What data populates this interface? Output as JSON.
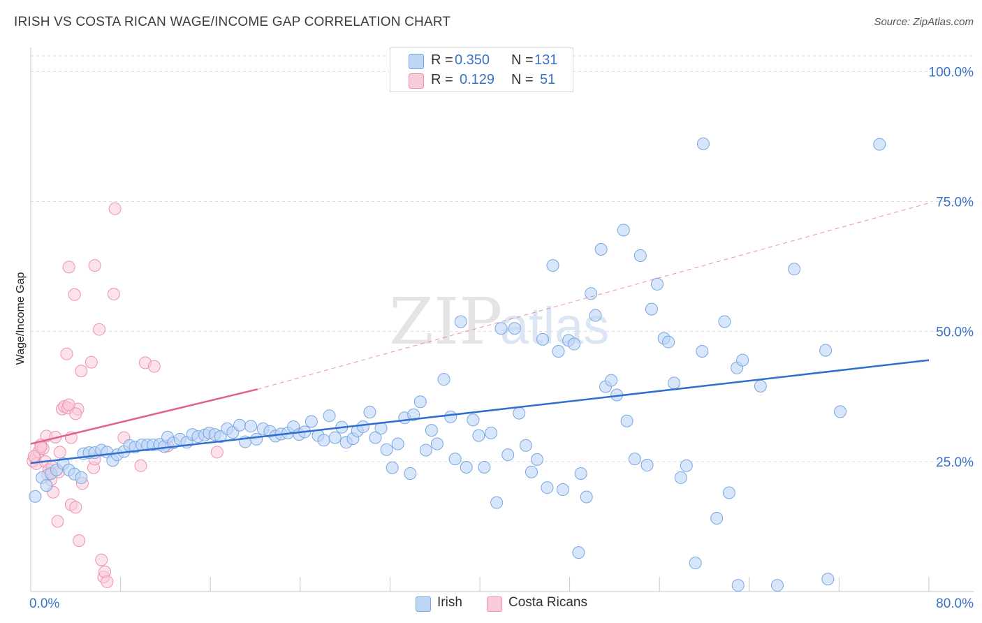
{
  "header": {
    "title": "IRISH VS COSTA RICAN WAGE/INCOME GAP CORRELATION CHART",
    "source": "Source: ZipAtlas.com"
  },
  "watermark": {
    "zip": "ZIP",
    "atlas": "atlas"
  },
  "legend": {
    "r_label": "R =",
    "n_label": "N =",
    "rows": [
      {
        "series": "Irish",
        "r": "0.350",
        "n": "131",
        "color": "#8fb6ea"
      },
      {
        "series": "Costa Ricans",
        "r": "0.129",
        "n": "51",
        "color": "#f2a3bc"
      }
    ]
  },
  "colors": {
    "irish_fill": "#bdd6f6",
    "irish_stroke": "#7aa6df",
    "irish_line": "#2f6fd0",
    "cr_fill": "#f9cad8",
    "cr_stroke": "#ec93b0",
    "cr_line": "#e0628f",
    "tick_label": "#3a72c8",
    "grid": "#dddddd"
  },
  "chart_data": {
    "type": "scatter",
    "title": "IRISH VS COSTA RICAN WAGE/INCOME GAP CORRELATION CHART",
    "xlabel": "",
    "ylabel": "Wage/Income Gap",
    "xlim": [
      0,
      80
    ],
    "ylim": [
      0,
      103
    ],
    "x_tick_labels": [
      "0.0%",
      "80.0%"
    ],
    "y_ticks": [
      25,
      50,
      75,
      100
    ],
    "y_tick_labels": [
      "25.0%",
      "50.0%",
      "75.0%",
      "100.0%"
    ],
    "grid": true,
    "legend_position": "top-center",
    "series": [
      {
        "name": "Irish",
        "r": 0.35,
        "n": 131,
        "trend": {
          "x": [
            0,
            80
          ],
          "y": [
            24.7,
            44.5
          ]
        },
        "points": [
          [
            0.4,
            18.3
          ],
          [
            1.0,
            21.9
          ],
          [
            1.4,
            20.4
          ],
          [
            1.8,
            22.7
          ],
          [
            2.3,
            23.4
          ],
          [
            2.9,
            24.6
          ],
          [
            3.4,
            23.4
          ],
          [
            3.9,
            22.6
          ],
          [
            4.5,
            21.9
          ],
          [
            4.7,
            26.5
          ],
          [
            5.2,
            26.7
          ],
          [
            5.7,
            26.7
          ],
          [
            6.3,
            27.2
          ],
          [
            6.8,
            26.8
          ],
          [
            7.3,
            25.2
          ],
          [
            7.7,
            26.3
          ],
          [
            8.3,
            26.9
          ],
          [
            8.8,
            28.1
          ],
          [
            9.3,
            27.8
          ],
          [
            9.9,
            28.2
          ],
          [
            10.4,
            28.2
          ],
          [
            10.9,
            28.2
          ],
          [
            11.5,
            28.3
          ],
          [
            11.9,
            27.9
          ],
          [
            12.2,
            29.7
          ],
          [
            12.7,
            28.6
          ],
          [
            13.3,
            29.3
          ],
          [
            13.9,
            28.7
          ],
          [
            14.4,
            30.2
          ],
          [
            14.9,
            29.8
          ],
          [
            15.5,
            30.1
          ],
          [
            15.9,
            30.5
          ],
          [
            16.4,
            30.2
          ],
          [
            16.9,
            29.8
          ],
          [
            17.5,
            31.3
          ],
          [
            18.0,
            30.6
          ],
          [
            18.6,
            32.0
          ],
          [
            19.1,
            28.8
          ],
          [
            19.6,
            31.8
          ],
          [
            20.1,
            29.3
          ],
          [
            20.7,
            31.3
          ],
          [
            21.3,
            30.8
          ],
          [
            21.8,
            29.9
          ],
          [
            22.3,
            30.3
          ],
          [
            22.9,
            30.5
          ],
          [
            23.4,
            31.7
          ],
          [
            23.9,
            30.2
          ],
          [
            24.4,
            30.7
          ],
          [
            25.0,
            32.7
          ],
          [
            25.6,
            30.0
          ],
          [
            26.1,
            29.1
          ],
          [
            26.6,
            33.8
          ],
          [
            27.1,
            29.6
          ],
          [
            27.7,
            31.6
          ],
          [
            28.1,
            28.7
          ],
          [
            28.7,
            29.4
          ],
          [
            29.1,
            30.9
          ],
          [
            29.6,
            31.7
          ],
          [
            30.2,
            34.5
          ],
          [
            30.7,
            29.6
          ],
          [
            31.2,
            31.4
          ],
          [
            31.7,
            27.3
          ],
          [
            32.2,
            23.8
          ],
          [
            32.7,
            28.4
          ],
          [
            33.3,
            33.4
          ],
          [
            33.8,
            22.7
          ],
          [
            34.1,
            34.0
          ],
          [
            34.7,
            36.5
          ],
          [
            35.2,
            27.2
          ],
          [
            35.7,
            31.0
          ],
          [
            36.2,
            28.4
          ],
          [
            36.8,
            40.8
          ],
          [
            37.4,
            33.6
          ],
          [
            37.8,
            25.5
          ],
          [
            38.3,
            51.9
          ],
          [
            38.8,
            23.9
          ],
          [
            39.4,
            33.0
          ],
          [
            39.9,
            30.0
          ],
          [
            40.4,
            23.9
          ],
          [
            41.0,
            30.5
          ],
          [
            41.5,
            17.1
          ],
          [
            41.9,
            50.6
          ],
          [
            42.5,
            26.3
          ],
          [
            43.1,
            50.6
          ],
          [
            43.5,
            34.3
          ],
          [
            44.1,
            28.1
          ],
          [
            44.6,
            23.0
          ],
          [
            45.1,
            25.4
          ],
          [
            45.6,
            48.5
          ],
          [
            46.0,
            20.0
          ],
          [
            46.5,
            62.7
          ],
          [
            47.0,
            46.2
          ],
          [
            47.4,
            19.6
          ],
          [
            47.9,
            48.3
          ],
          [
            48.4,
            47.6
          ],
          [
            48.8,
            7.5
          ],
          [
            49.0,
            22.7
          ],
          [
            49.5,
            18.2
          ],
          [
            49.9,
            57.3
          ],
          [
            50.3,
            53.1
          ],
          [
            50.8,
            65.8
          ],
          [
            51.2,
            39.4
          ],
          [
            51.7,
            40.6
          ],
          [
            52.2,
            37.8
          ],
          [
            52.8,
            69.5
          ],
          [
            53.1,
            32.8
          ],
          [
            53.8,
            25.5
          ],
          [
            54.3,
            64.6
          ],
          [
            54.9,
            24.3
          ],
          [
            55.3,
            54.3
          ],
          [
            55.8,
            59.1
          ],
          [
            56.4,
            48.7
          ],
          [
            56.8,
            48.0
          ],
          [
            57.3,
            40.1
          ],
          [
            57.9,
            21.9
          ],
          [
            58.4,
            24.2
          ],
          [
            59.2,
            5.5
          ],
          [
            59.8,
            46.2
          ],
          [
            59.9,
            86.1
          ],
          [
            61.1,
            14.1
          ],
          [
            61.8,
            51.9
          ],
          [
            62.2,
            19.0
          ],
          [
            62.9,
            43.0
          ],
          [
            63.0,
            1.2
          ],
          [
            63.4,
            44.5
          ],
          [
            65.0,
            39.5
          ],
          [
            66.5,
            1.2
          ],
          [
            68.0,
            62.0
          ],
          [
            70.8,
            46.4
          ],
          [
            71.0,
            2.4
          ],
          [
            72.1,
            34.6
          ],
          [
            75.6,
            86.0
          ]
        ]
      },
      {
        "name": "Costa Ricans",
        "r": 0.129,
        "n": 51,
        "trend": {
          "x": [
            0,
            20.2
          ],
          "y": [
            28.4,
            38.9
          ]
        },
        "trend_extension": {
          "x": [
            20.2,
            80
          ],
          "y": [
            38.9,
            74.7
          ]
        },
        "points": [
          [
            0.2,
            25.1
          ],
          [
            0.4,
            25.7
          ],
          [
            0.5,
            24.6
          ],
          [
            0.7,
            26.9
          ],
          [
            0.9,
            28.2
          ],
          [
            1.1,
            27.5
          ],
          [
            1.3,
            25.0
          ],
          [
            1.4,
            29.9
          ],
          [
            1.6,
            23.4
          ],
          [
            1.8,
            21.5
          ],
          [
            2.0,
            19.1
          ],
          [
            2.2,
            29.7
          ],
          [
            2.4,
            13.5
          ],
          [
            2.6,
            26.8
          ],
          [
            2.8,
            35.1
          ],
          [
            3.0,
            35.6
          ],
          [
            3.2,
            45.7
          ],
          [
            3.4,
            62.4
          ],
          [
            3.6,
            16.7
          ],
          [
            3.9,
            57.1
          ],
          [
            4.0,
            16.2
          ],
          [
            4.2,
            35.1
          ],
          [
            4.3,
            9.8
          ],
          [
            4.5,
            42.4
          ],
          [
            4.6,
            20.8
          ],
          [
            5.4,
            44.1
          ],
          [
            5.6,
            23.8
          ],
          [
            5.7,
            25.5
          ],
          [
            6.1,
            50.4
          ],
          [
            6.3,
            6.1
          ],
          [
            6.5,
            2.8
          ],
          [
            6.6,
            3.8
          ],
          [
            6.8,
            1.9
          ],
          [
            7.4,
            57.2
          ],
          [
            7.5,
            73.6
          ],
          [
            8.3,
            29.6
          ],
          [
            9.8,
            24.2
          ],
          [
            10.2,
            44.0
          ],
          [
            11.0,
            43.3
          ],
          [
            12.2,
            28.0
          ],
          [
            16.6,
            26.8
          ],
          [
            0.3,
            26.0
          ],
          [
            0.9,
            27.8
          ],
          [
            1.9,
            24.0
          ],
          [
            3.3,
            35.3
          ],
          [
            3.4,
            35.9
          ],
          [
            3.6,
            29.6
          ],
          [
            4.0,
            34.2
          ],
          [
            5.7,
            62.7
          ],
          [
            1.5,
            22.4
          ],
          [
            2.5,
            23.0
          ]
        ]
      }
    ]
  }
}
